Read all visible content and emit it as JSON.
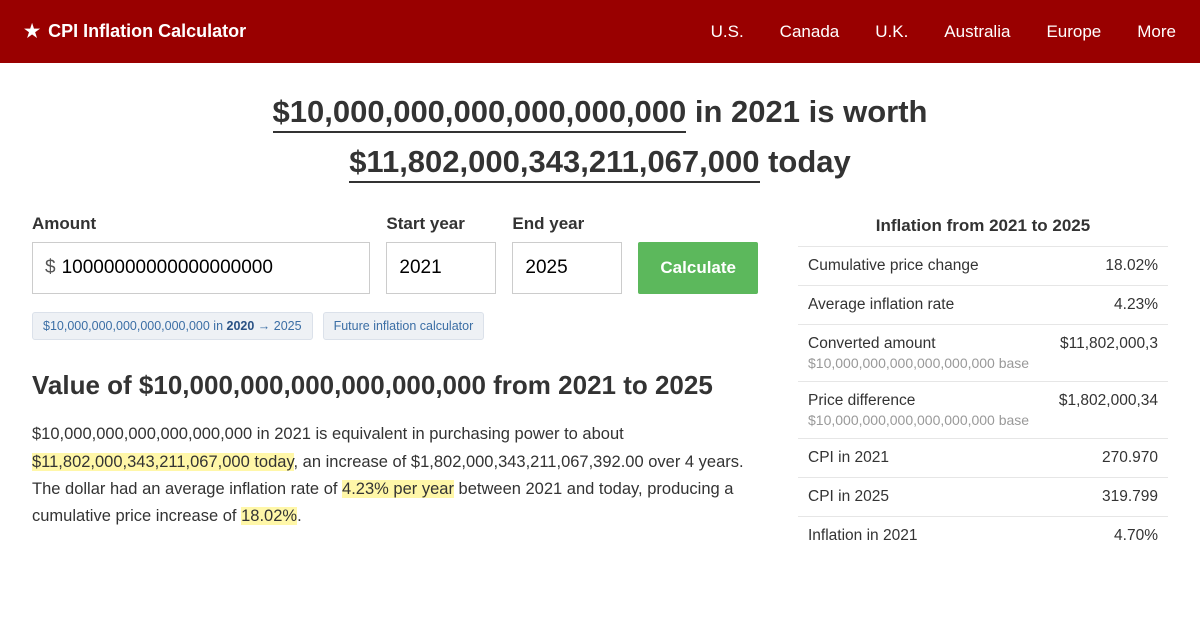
{
  "header": {
    "brand": "CPI Inflation Calculator",
    "nav": [
      "U.S.",
      "Canada",
      "U.K.",
      "Australia",
      "Europe",
      "More"
    ]
  },
  "headline": {
    "amount1": "$10,000,000,000,000,000,000",
    "mid1": " in 2021 is worth ",
    "amount2": "$11,802,000,343,211,067,000",
    "tail": " today"
  },
  "form": {
    "amount_label": "Amount",
    "currency": "$",
    "amount_value": "10000000000000000000",
    "start_label": "Start year",
    "start_value": "2021",
    "end_label": "End year",
    "end_value": "2025",
    "button": "Calculate"
  },
  "chips": {
    "c1_pre": "$10,000,000,000,000,000,000 in ",
    "c1_bold": "2020",
    "c1_post": " → 2025",
    "c2": "Future inflation calculator"
  },
  "section": {
    "h2": "Value of $10,000,000,000,000,000,000 from 2021 to 2025",
    "p_pre": "$10,000,000,000,000,000,000 in 2021 is equivalent in purchasing power to about ",
    "p_hl1": "$11,802,000,343,211,067,000 today",
    "p_mid1": ", an increase of $1,802,000,343,211,067,392.00 over 4 years. The dollar had an average inflation rate of ",
    "p_hl2": "4.23% per year",
    "p_mid2": " between 2021 and today, producing a cumulative price increase of ",
    "p_hl3": "18.02%",
    "p_tail": "."
  },
  "side": {
    "title": "Inflation from 2021 to 2025",
    "rows": [
      {
        "label": "Cumulative price change",
        "sub": "",
        "val": "18.02%"
      },
      {
        "label": "Average inflation rate",
        "sub": "",
        "val": "4.23%"
      },
      {
        "label": "Converted amount",
        "sub": "$10,000,000,000,000,000,000 base",
        "val": "$11,802,000,3"
      },
      {
        "label": "Price difference",
        "sub": "$10,000,000,000,000,000,000 base",
        "val": "$1,802,000,34"
      },
      {
        "label": "CPI in 2021",
        "sub": "",
        "val": "270.970"
      },
      {
        "label": "CPI in 2025",
        "sub": "",
        "val": "319.799"
      },
      {
        "label": "Inflation in 2021",
        "sub": "",
        "val": "4.70%"
      }
    ]
  }
}
